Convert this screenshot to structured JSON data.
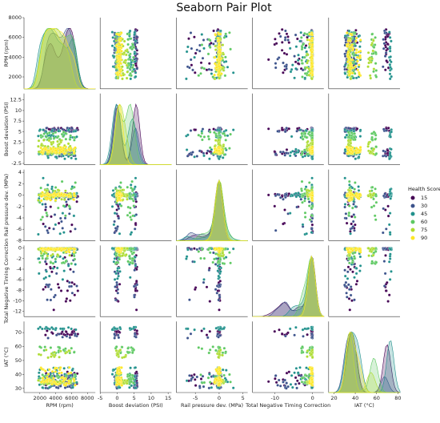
{
  "chart_data": {
    "type": "scatter",
    "title": "Seaborn Pair Plot",
    "variables": [
      {
        "key": "rpm",
        "label": "RPM (rpm)",
        "lim": [
          800,
          8000
        ],
        "ticks": [
          2000,
          4000,
          6000,
          8000
        ]
      },
      {
        "key": "boost",
        "label": "Boost deviation (PSI)",
        "lim": [
          -2.8,
          14
        ],
        "ticks": [
          -2.5,
          0,
          2.5,
          5,
          7.5,
          10,
          12.5
        ]
      },
      {
        "key": "rail",
        "label": "Rail pressure dev. (MPa)",
        "lim": [
          -8,
          4.5
        ],
        "ticks": [
          -8,
          -6,
          -4,
          -2,
          0,
          2,
          4
        ]
      },
      {
        "key": "tntc",
        "label": "Total Negative Timing Correction",
        "lim": [
          -13,
          0.5
        ],
        "ticks": [
          -12,
          -10,
          -8,
          -6,
          -4,
          -2,
          0
        ]
      },
      {
        "key": "iat",
        "label": "IAT (°C)",
        "lim": [
          27,
          78
        ],
        "ticks": [
          30,
          40,
          50,
          60,
          70
        ]
      }
    ],
    "x_tick_labels": {
      "rpm": [
        2000,
        4000,
        6000,
        8000
      ],
      "boost": [
        -5,
        0,
        5,
        10,
        15
      ],
      "rail": [
        -5,
        0,
        5
      ],
      "tntc": [
        -10,
        0
      ],
      "iat": [
        20,
        40,
        60,
        80
      ]
    },
    "x_lims": {
      "rpm": [
        0,
        9000
      ],
      "boost": [
        -5,
        16
      ],
      "rail": [
        -9,
        6
      ],
      "tntc": [
        -16,
        3
      ],
      "iat": [
        15,
        82
      ]
    },
    "legend": {
      "title": "Health Score",
      "placement": "right",
      "entries": [
        {
          "label": "15",
          "color": "#440154"
        },
        {
          "label": "30",
          "color": "#3b528b"
        },
        {
          "label": "45",
          "color": "#21918c"
        },
        {
          "label": "60",
          "color": "#5ec962"
        },
        {
          "label": "75",
          "color": "#addc30"
        },
        {
          "label": "90",
          "color": "#fde725"
        }
      ]
    },
    "series_profiles": [
      {
        "name": "15",
        "rpm": [
          2400,
          6800
        ],
        "boost": [
          -0.5,
          0.8,
          5.2,
          6.0
        ],
        "rail": [
          -6.5,
          0.2
        ],
        "tntc": [
          -12,
          -1
        ],
        "iat": [
          32,
          42,
          68,
          72
        ]
      },
      {
        "name": "30",
        "rpm": [
          2600,
          6800
        ],
        "boost": [
          -0.8,
          0.5,
          5.0,
          6.0
        ],
        "rail": [
          -7.2,
          0.5
        ],
        "tntc": [
          -10,
          -0.5
        ],
        "iat": [
          30,
          40,
          66,
          70
        ]
      },
      {
        "name": "45",
        "rpm": [
          1800,
          6800
        ],
        "boost": [
          -1.5,
          1.0,
          3.5,
          5.5
        ],
        "rail": [
          -7.3,
          3.5
        ],
        "tntc": [
          -6,
          0
        ],
        "iat": [
          30,
          45,
          72,
          74
        ]
      },
      {
        "name": "60",
        "rpm": [
          1800,
          6500
        ],
        "boost": [
          -0.5,
          1.5,
          3.0,
          5.0
        ],
        "rail": [
          -4.5,
          2.5
        ],
        "tntc": [
          -3,
          0
        ],
        "iat": [
          33,
          40,
          55,
          60
        ]
      },
      {
        "name": "75",
        "rpm": [
          1800,
          6000
        ],
        "boost": [
          -0.3,
          1.0,
          1.5,
          3.0
        ],
        "rail": [
          -1,
          1
        ],
        "tntc": [
          -1.5,
          0
        ],
        "iat": [
          33,
          36,
          52,
          58
        ]
      },
      {
        "name": "90",
        "rpm": [
          2000,
          6500
        ],
        "boost": [
          -0.2,
          0.8,
          0.5,
          1.5
        ],
        "rail": [
          -1,
          0.5
        ],
        "tntc": [
          -0.8,
          0
        ],
        "iat": [
          32,
          38,
          40,
          45
        ]
      }
    ],
    "grid": false
  }
}
